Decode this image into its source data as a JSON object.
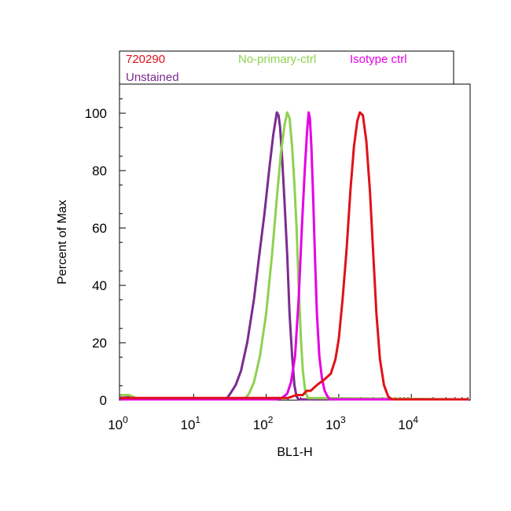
{
  "chart_data": {
    "type": "line",
    "title": "",
    "xlabel": "BL1-H",
    "ylabel": "Percent of Max",
    "x_scale": "log",
    "xlim": [
      1,
      60000
    ],
    "ylim": [
      0,
      110
    ],
    "x_ticks": [
      {
        "value": 1,
        "base": "10",
        "exp": "0"
      },
      {
        "value": 10,
        "base": "10",
        "exp": "1"
      },
      {
        "value": 100,
        "base": "10",
        "exp": "2"
      },
      {
        "value": 1000,
        "base": "10",
        "exp": "3"
      },
      {
        "value": 10000,
        "base": "10",
        "exp": "4"
      }
    ],
    "y_ticks": [
      0,
      20,
      40,
      60,
      80,
      100
    ],
    "grid": false,
    "legend_position": "top",
    "series": [
      {
        "name": "Unstained",
        "color": "#7B2C8E",
        "points": [
          [
            1,
            1.5
          ],
          [
            1.3,
            1.2
          ],
          [
            1.6,
            0.4
          ],
          [
            3,
            0
          ],
          [
            28,
            0
          ],
          [
            32,
            2
          ],
          [
            38,
            5
          ],
          [
            45,
            10
          ],
          [
            55,
            20
          ],
          [
            68,
            35
          ],
          [
            80,
            50
          ],
          [
            95,
            65
          ],
          [
            110,
            80
          ],
          [
            125,
            92
          ],
          [
            140,
            100
          ],
          [
            148,
            99
          ],
          [
            155,
            95
          ],
          [
            165,
            85
          ],
          [
            178,
            70
          ],
          [
            195,
            50
          ],
          [
            210,
            30
          ],
          [
            228,
            15
          ],
          [
            245,
            5
          ],
          [
            262,
            1
          ],
          [
            280,
            0
          ],
          [
            60000,
            0
          ]
        ]
      },
      {
        "name": "No-primary-ctrl",
        "color": "#8FD14F",
        "points": [
          [
            1,
            1.5
          ],
          [
            1.3,
            1.5
          ],
          [
            1.6,
            0.5
          ],
          [
            3,
            0
          ],
          [
            50,
            0
          ],
          [
            58,
            2
          ],
          [
            68,
            6
          ],
          [
            82,
            15
          ],
          [
            100,
            30
          ],
          [
            120,
            50
          ],
          [
            140,
            70
          ],
          [
            160,
            86
          ],
          [
            180,
            96
          ],
          [
            195,
            100
          ],
          [
            210,
            98
          ],
          [
            228,
            88
          ],
          [
            245,
            75
          ],
          [
            262,
            60
          ],
          [
            280,
            40
          ],
          [
            300,
            22
          ],
          [
            320,
            10
          ],
          [
            345,
            3
          ],
          [
            375,
            0.5
          ],
          [
            60000,
            0
          ]
        ]
      },
      {
        "name": "Isotype ctrl",
        "color": "#E500E5",
        "points": [
          [
            1,
            0
          ],
          [
            140,
            0
          ],
          [
            165,
            0.5
          ],
          [
            195,
            2
          ],
          [
            220,
            6
          ],
          [
            250,
            15
          ],
          [
            280,
            35
          ],
          [
            310,
            60
          ],
          [
            340,
            80
          ],
          [
            365,
            93
          ],
          [
            385,
            100
          ],
          [
            400,
            98
          ],
          [
            420,
            88
          ],
          [
            445,
            70
          ],
          [
            470,
            50
          ],
          [
            500,
            30
          ],
          [
            540,
            15
          ],
          [
            590,
            7
          ],
          [
            640,
            3
          ],
          [
            700,
            1
          ],
          [
            760,
            0
          ],
          [
            60000,
            0
          ]
        ]
      },
      {
        "name": "720290",
        "color": "#E0111A",
        "points": [
          [
            1,
            0.5
          ],
          [
            50,
            0.5
          ],
          [
            200,
            0.5
          ],
          [
            260,
            1.5
          ],
          [
            320,
            1.5
          ],
          [
            360,
            3
          ],
          [
            410,
            3
          ],
          [
            500,
            5
          ],
          [
            640,
            7
          ],
          [
            780,
            9
          ],
          [
            900,
            14
          ],
          [
            1000,
            21
          ],
          [
            1130,
            35
          ],
          [
            1280,
            52
          ],
          [
            1450,
            73
          ],
          [
            1620,
            88
          ],
          [
            1800,
            97
          ],
          [
            1950,
            100
          ],
          [
            2150,
            99
          ],
          [
            2400,
            90
          ],
          [
            2700,
            72
          ],
          [
            3000,
            50
          ],
          [
            3300,
            30
          ],
          [
            3700,
            14
          ],
          [
            4200,
            5
          ],
          [
            4800,
            1
          ],
          [
            5400,
            0
          ],
          [
            60000,
            0
          ]
        ]
      }
    ],
    "legend": [
      {
        "label": "720290",
        "color": "#E0111A"
      },
      {
        "label": "No-primary-ctrl",
        "color": "#8FD14F"
      },
      {
        "label": "Isotype ctrl",
        "color": "#E500E5"
      },
      {
        "label": "Unstained",
        "color": "#7B2C8E"
      }
    ]
  }
}
